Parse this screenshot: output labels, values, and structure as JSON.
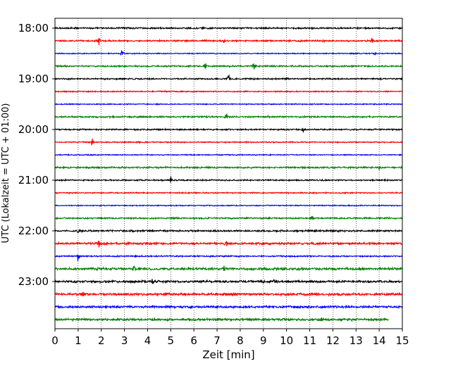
{
  "chart_data": {
    "type": "line",
    "title": "",
    "xlabel": "Zeit  [min]",
    "ylabel": "UTC (Lokalzeit = UTC + 01:00)",
    "xlim": [
      0,
      15
    ],
    "x_ticks": [
      "0",
      "1",
      "2",
      "3",
      "4",
      "5",
      "6",
      "7",
      "8",
      "9",
      "10",
      "11",
      "12",
      "13",
      "14",
      "15"
    ],
    "y_ticks": [
      "18:00",
      "19:00",
      "20:00",
      "21:00",
      "22:00",
      "23:00"
    ],
    "grid": "vertical dotted at each minute",
    "colors": [
      "#000000",
      "#ff0000",
      "#0000ff",
      "#008000"
    ],
    "series": [
      {
        "start": "18:00",
        "end_min": 15,
        "noise": 0.9,
        "events": []
      },
      {
        "start": "18:15",
        "end_min": 15,
        "noise": 0.9,
        "events": [
          [
            1.9,
            6
          ],
          [
            7.3,
            3
          ],
          [
            11.6,
            3
          ],
          [
            13.7,
            9
          ]
        ]
      },
      {
        "start": "18:30",
        "end_min": 15,
        "noise": 0.6,
        "events": [
          [
            2.9,
            8
          ],
          [
            13.8,
            3
          ]
        ]
      },
      {
        "start": "18:45",
        "end_min": 15,
        "noise": 0.9,
        "events": [
          [
            6.5,
            5
          ],
          [
            8.6,
            9
          ]
        ]
      },
      {
        "start": "19:00",
        "end_min": 15,
        "noise": 0.8,
        "events": [
          [
            7.5,
            10
          ],
          [
            10.0,
            3
          ]
        ]
      },
      {
        "start": "19:15",
        "end_min": 15,
        "noise": 0.7,
        "events": []
      },
      {
        "start": "19:30",
        "end_min": 15,
        "noise": 0.6,
        "events": []
      },
      {
        "start": "19:45",
        "end_min": 15,
        "noise": 0.9,
        "events": [
          [
            7.4,
            6
          ],
          [
            9.2,
            2
          ]
        ]
      },
      {
        "start": "20:00",
        "end_min": 15,
        "noise": 0.8,
        "events": [
          [
            10.7,
            5
          ]
        ]
      },
      {
        "start": "20:15",
        "end_min": 15,
        "noise": 0.7,
        "events": [
          [
            1.6,
            7
          ]
        ]
      },
      {
        "start": "20:30",
        "end_min": 15,
        "noise": 0.6,
        "events": []
      },
      {
        "start": "20:45",
        "end_min": 15,
        "noise": 0.9,
        "events": [
          [
            14.0,
            2
          ]
        ]
      },
      {
        "start": "21:00",
        "end_min": 15,
        "noise": 0.8,
        "events": [
          [
            5.0,
            6
          ]
        ]
      },
      {
        "start": "21:15",
        "end_min": 15,
        "noise": 0.7,
        "events": []
      },
      {
        "start": "21:30",
        "end_min": 15,
        "noise": 0.6,
        "events": []
      },
      {
        "start": "21:45",
        "end_min": 15,
        "noise": 0.9,
        "events": [
          [
            11.1,
            4
          ]
        ]
      },
      {
        "start": "22:00",
        "end_min": 15,
        "noise": 1.0,
        "events": [
          [
            1.0,
            4
          ]
        ]
      },
      {
        "start": "22:15",
        "end_min": 15,
        "noise": 1.2,
        "events": [
          [
            1.9,
            6
          ],
          [
            7.4,
            6
          ]
        ]
      },
      {
        "start": "22:30",
        "end_min": 15,
        "noise": 0.8,
        "events": [
          [
            1.0,
            10
          ]
        ]
      },
      {
        "start": "22:45",
        "end_min": 15,
        "noise": 1.4,
        "events": [
          [
            3.4,
            4
          ],
          [
            7.3,
            4
          ]
        ]
      },
      {
        "start": "23:00",
        "end_min": 15,
        "noise": 1.3,
        "events": [
          [
            4.2,
            4
          ],
          [
            9.5,
            4
          ]
        ]
      },
      {
        "start": "23:15",
        "end_min": 15,
        "noise": 1.4,
        "events": [
          [
            1.2,
            4
          ]
        ]
      },
      {
        "start": "23:30",
        "end_min": 15,
        "noise": 1.2,
        "events": []
      },
      {
        "start": "23:45",
        "end_min": 14.4,
        "noise": 1.3,
        "events": [
          [
            11.5,
            3
          ]
        ]
      }
    ]
  }
}
